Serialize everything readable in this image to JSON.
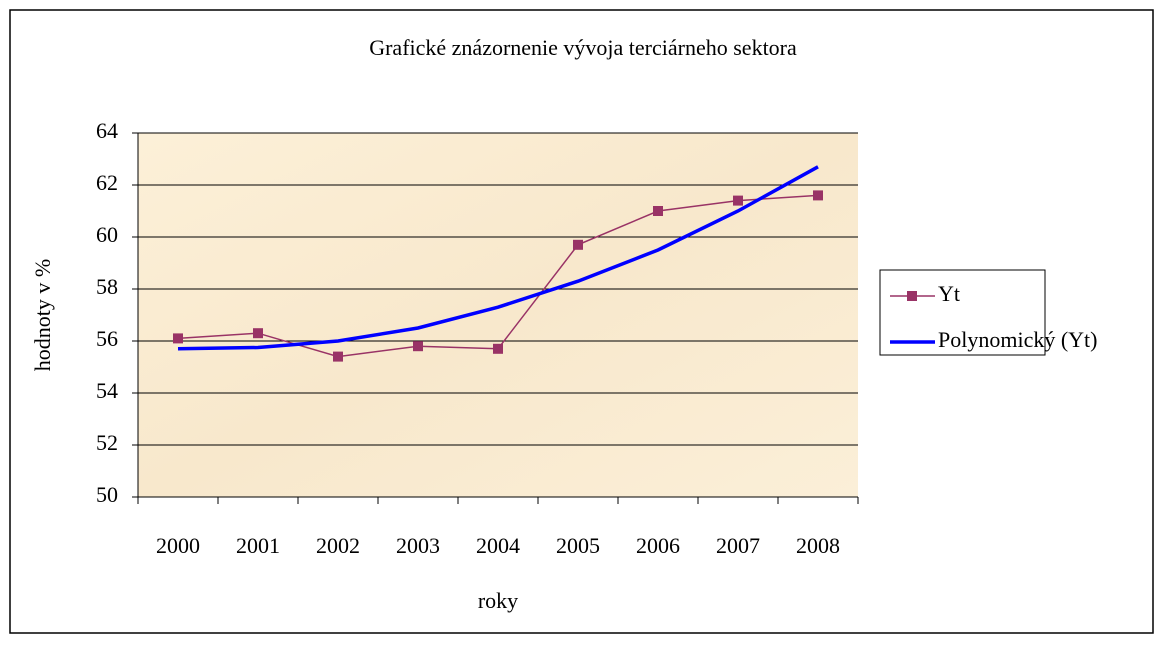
{
  "chart_data": {
    "type": "line",
    "title": "Grafické znázornenie vývoja terciárneho sektora",
    "xlabel": "roky",
    "ylabel": "hodnoty v %",
    "categories": [
      "2000",
      "2001",
      "2002",
      "2003",
      "2004",
      "2005",
      "2006",
      "2007",
      "2008"
    ],
    "series": [
      {
        "name": "Yt",
        "color": "#993366",
        "marker": "square",
        "values": [
          56.1,
          56.3,
          55.4,
          55.8,
          55.7,
          59.7,
          61.0,
          61.4,
          61.6
        ]
      },
      {
        "name": "Polynomický (Yt)",
        "color": "#0000ff",
        "marker": "none",
        "values": [
          55.7,
          55.75,
          56.0,
          56.5,
          57.3,
          58.3,
          59.5,
          61.0,
          62.7
        ]
      }
    ],
    "ylim": [
      50,
      64
    ],
    "yticks": [
      50,
      52,
      54,
      56,
      58,
      60,
      62,
      64
    ],
    "grid": true,
    "legend": "right"
  }
}
